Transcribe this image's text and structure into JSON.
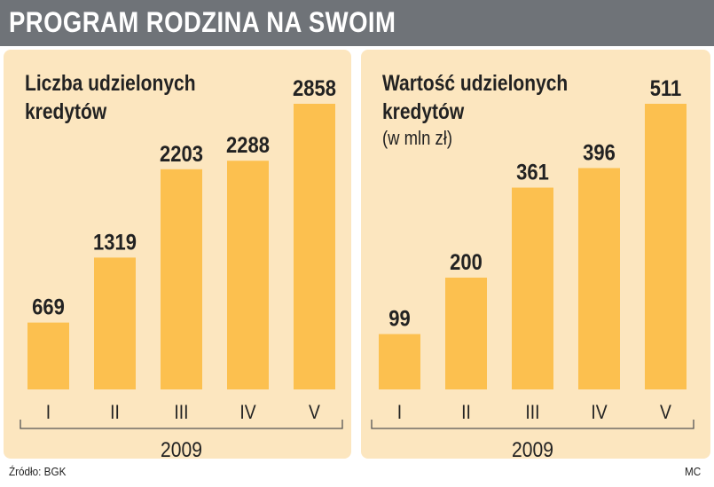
{
  "title": "PROGRAM RODZINA NA SWOIM",
  "source": "Źródło: BGK",
  "credit": "MC",
  "colors": {
    "bar": "#fcc04f",
    "panel": "#fce6bf",
    "title_bar": "#6f7378",
    "text": "#222222"
  },
  "chart_data": [
    {
      "type": "bar",
      "title": "Liczba udzielonych kredytów",
      "subtitle": "",
      "xlabel": "2009",
      "ylabel": "",
      "categories": [
        "I",
        "II",
        "III",
        "IV",
        "V"
      ],
      "values": [
        669,
        1319,
        2203,
        2288,
        2858
      ],
      "ylim": [
        0,
        2858
      ],
      "grid": false,
      "legend": "none"
    },
    {
      "type": "bar",
      "title": "Wartość udzielonych kredytów",
      "subtitle": "(w mln zł)",
      "xlabel": "2009",
      "ylabel": "",
      "categories": [
        "I",
        "II",
        "III",
        "IV",
        "V"
      ],
      "values": [
        99,
        200,
        361,
        396,
        511
      ],
      "ylim": [
        0,
        511
      ],
      "grid": false,
      "legend": "none"
    }
  ]
}
